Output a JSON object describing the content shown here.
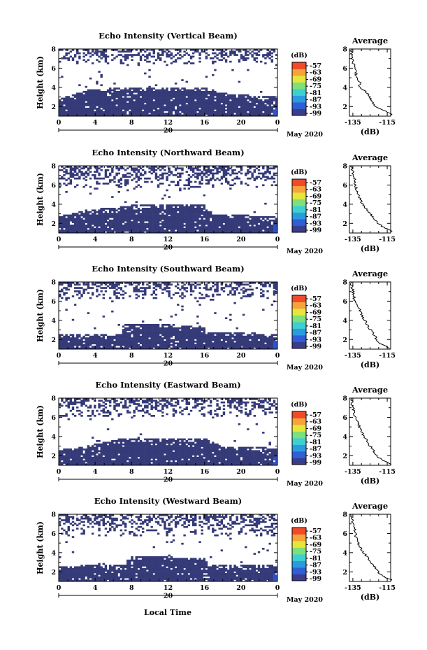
{
  "figure": {
    "x_label": "Local Time",
    "day_label": "20",
    "month_label": "May 2020",
    "y_label": "Height (km)",
    "average_title": "Average",
    "average_xlabel": "(dB)",
    "colorbar_unit": "(dB)",
    "colors": {
      "echo": "#353a78",
      "strong_echo": "#2c53c8",
      "background": "#ffffff",
      "colorbar": [
        "#3a3c8c",
        "#2f5fd6",
        "#2b9be0",
        "#3ed0d0",
        "#7ee07a",
        "#e6e63a",
        "#f6a33a",
        "#f04a2a"
      ]
    }
  },
  "chart_data": [
    {
      "type": "heatmap",
      "title": "Echo Intensity (Vertical Beam)",
      "xlabel": "Local Time",
      "ylabel": "Height (km)",
      "x_ticks": [
        "0",
        "4",
        "8",
        "12",
        "16",
        "20",
        "0"
      ],
      "y_ticks": [
        "2",
        "4",
        "6",
        "8"
      ],
      "xlim": [
        0,
        24
      ],
      "ylim": [
        1,
        8
      ],
      "colorbar": {
        "unit": "(dB)",
        "ticks": [
          "-57",
          "-63",
          "-69",
          "-75",
          "-81",
          "-87",
          "-93",
          "-99"
        ]
      },
      "low_layer_top_km": [
        [
          0,
          2.8
        ],
        [
          3.5,
          3.8
        ],
        [
          8,
          4.0
        ],
        [
          16,
          4.0
        ],
        [
          18,
          3.4
        ],
        [
          24,
          3.0
        ]
      ],
      "high_layer_km": [
        6.5,
        8
      ],
      "average_profile": {
        "xlabel": "(dB)",
        "x_ticks": [
          "-135",
          "-115"
        ],
        "y_ticks": [
          "2",
          "4",
          "6",
          "8"
        ],
        "xlim": [
          -137,
          -113
        ],
        "points": [
          [
            -113,
            1.2
          ],
          [
            -117,
            1.6
          ],
          [
            -121,
            1.9
          ],
          [
            -123,
            2.3
          ],
          [
            -124,
            2.7
          ],
          [
            -126,
            3.2
          ],
          [
            -128,
            3.7
          ],
          [
            -131,
            4.0
          ],
          [
            -131,
            4.5
          ],
          [
            -133,
            5.2
          ],
          [
            -134,
            6.0
          ],
          [
            -135,
            6.8
          ],
          [
            -136,
            7.6
          ],
          [
            -136,
            8.0
          ]
        ]
      }
    },
    {
      "type": "heatmap",
      "title": "Echo Intensity (Northward Beam)",
      "xlabel": "Local Time",
      "ylabel": "Height (km)",
      "x_ticks": [
        "0",
        "4",
        "8",
        "12",
        "16",
        "20",
        "0"
      ],
      "y_ticks": [
        "2",
        "4",
        "6",
        "8"
      ],
      "xlim": [
        0,
        24
      ],
      "ylim": [
        1,
        8
      ],
      "colorbar": {
        "unit": "(dB)",
        "ticks": [
          "-57",
          "-63",
          "-69",
          "-75",
          "-81",
          "-87",
          "-93",
          "-99"
        ]
      },
      "low_layer_top_km": [
        [
          0,
          2.7
        ],
        [
          3,
          3.4
        ],
        [
          8,
          3.9
        ],
        [
          16,
          3.9
        ],
        [
          17,
          3.0
        ],
        [
          24,
          2.7
        ]
      ],
      "high_layer_km": [
        5.5,
        8
      ],
      "average_profile": {
        "xlabel": "(dB)",
        "x_ticks": [
          "-135",
          "-115"
        ],
        "y_ticks": [
          "2",
          "4",
          "6",
          "8"
        ],
        "xlim": [
          -137,
          -113
        ],
        "points": [
          [
            -113,
            1.2
          ],
          [
            -117,
            1.6
          ],
          [
            -120,
            2.0
          ],
          [
            -123,
            2.5
          ],
          [
            -125,
            3.0
          ],
          [
            -127,
            3.5
          ],
          [
            -129,
            4.0
          ],
          [
            -131,
            4.5
          ],
          [
            -133,
            5.5
          ],
          [
            -134,
            6.5
          ],
          [
            -135,
            7.3
          ],
          [
            -136,
            8.0
          ]
        ]
      }
    },
    {
      "type": "heatmap",
      "title": "Echo Intensity (Southward Beam)",
      "xlabel": "Local Time",
      "ylabel": "Height (km)",
      "x_ticks": [
        "0",
        "4",
        "8",
        "12",
        "16",
        "20",
        "0"
      ],
      "y_ticks": [
        "2",
        "4",
        "6",
        "8"
      ],
      "xlim": [
        0,
        24
      ],
      "ylim": [
        1,
        8
      ],
      "colorbar": {
        "unit": "(dB)",
        "ticks": [
          "-57",
          "-63",
          "-69",
          "-75",
          "-81",
          "-87",
          "-93",
          "-99"
        ]
      },
      "low_layer_top_km": [
        [
          0,
          2.5
        ],
        [
          7,
          2.6
        ],
        [
          7.1,
          3.6
        ],
        [
          16,
          3.5
        ],
        [
          16.1,
          2.8
        ],
        [
          24,
          2.6
        ]
      ],
      "high_layer_km": [
        6.2,
        8
      ],
      "average_profile": {
        "xlabel": "(dB)",
        "x_ticks": [
          "-135",
          "-115"
        ],
        "y_ticks": [
          "2",
          "4",
          "6",
          "8"
        ],
        "xlim": [
          -137,
          -113
        ],
        "points": [
          [
            -113,
            1.1
          ],
          [
            -117,
            1.4
          ],
          [
            -121,
            1.8
          ],
          [
            -122,
            2.3
          ],
          [
            -124,
            2.8
          ],
          [
            -126,
            3.4
          ],
          [
            -128,
            4.0
          ],
          [
            -130,
            4.6
          ],
          [
            -132,
            5.4
          ],
          [
            -134,
            6.2
          ],
          [
            -135,
            7.0
          ],
          [
            -136,
            8.0
          ]
        ]
      }
    },
    {
      "type": "heatmap",
      "title": "Echo Intensity (Eastward Beam)",
      "xlabel": "Local Time",
      "ylabel": "Height (km)",
      "x_ticks": [
        "0",
        "4",
        "8",
        "12",
        "16",
        "20",
        "0"
      ],
      "y_ticks": [
        "2",
        "4",
        "6",
        "8"
      ],
      "xlim": [
        0,
        24
      ],
      "ylim": [
        1,
        8
      ],
      "colorbar": {
        "unit": "(dB)",
        "ticks": [
          "-57",
          "-63",
          "-69",
          "-75",
          "-81",
          "-87",
          "-93",
          "-99"
        ]
      },
      "low_layer_top_km": [
        [
          0,
          2.6
        ],
        [
          3,
          3.0
        ],
        [
          7,
          3.8
        ],
        [
          16,
          3.8
        ],
        [
          18,
          3.0
        ],
        [
          24,
          2.8
        ]
      ],
      "high_layer_km": [
        6.0,
        8
      ],
      "average_profile": {
        "xlabel": "(dB)",
        "x_ticks": [
          "-135",
          "-115"
        ],
        "y_ticks": [
          "2",
          "4",
          "6",
          "8"
        ],
        "xlim": [
          -137,
          -113
        ],
        "points": [
          [
            -113,
            1.1
          ],
          [
            -117,
            1.5
          ],
          [
            -121,
            1.9
          ],
          [
            -123,
            2.5
          ],
          [
            -125,
            3.0
          ],
          [
            -127,
            3.6
          ],
          [
            -129,
            4.2
          ],
          [
            -131,
            4.8
          ],
          [
            -132,
            5.5
          ],
          [
            -134,
            6.3
          ],
          [
            -135,
            7.0
          ],
          [
            -136,
            8.0
          ]
        ]
      }
    },
    {
      "type": "heatmap",
      "title": "Echo Intensity (Westward Beam)",
      "xlabel": "Local Time",
      "ylabel": "Height (km)",
      "x_ticks": [
        "0",
        "4",
        "8",
        "12",
        "16",
        "20",
        "0"
      ],
      "y_ticks": [
        "2",
        "4",
        "6",
        "8"
      ],
      "xlim": [
        0,
        24
      ],
      "ylim": [
        1,
        8
      ],
      "colorbar": {
        "unit": "(dB)",
        "ticks": [
          "-57",
          "-63",
          "-69",
          "-75",
          "-81",
          "-87",
          "-93",
          "-99"
        ]
      },
      "low_layer_top_km": [
        [
          0,
          2.6
        ],
        [
          7.5,
          2.8
        ],
        [
          7.6,
          3.6
        ],
        [
          16,
          3.5
        ],
        [
          16.5,
          2.8
        ],
        [
          24,
          2.7
        ]
      ],
      "high_layer_km": [
        5.7,
        8
      ],
      "average_profile": {
        "xlabel": "(dB)",
        "x_ticks": [
          "-135",
          "-115"
        ],
        "y_ticks": [
          "2",
          "4",
          "6",
          "8"
        ],
        "xlim": [
          -137,
          -113
        ],
        "points": [
          [
            -113,
            1.2
          ],
          [
            -117,
            1.5
          ],
          [
            -120,
            1.9
          ],
          [
            -122,
            2.4
          ],
          [
            -124,
            2.9
          ],
          [
            -126,
            3.4
          ],
          [
            -128,
            3.8
          ],
          [
            -130,
            4.2
          ],
          [
            -131,
            4.7
          ],
          [
            -133,
            5.5
          ],
          [
            -134,
            6.4
          ],
          [
            -135,
            7.2
          ],
          [
            -136,
            8.0
          ]
        ]
      }
    }
  ]
}
